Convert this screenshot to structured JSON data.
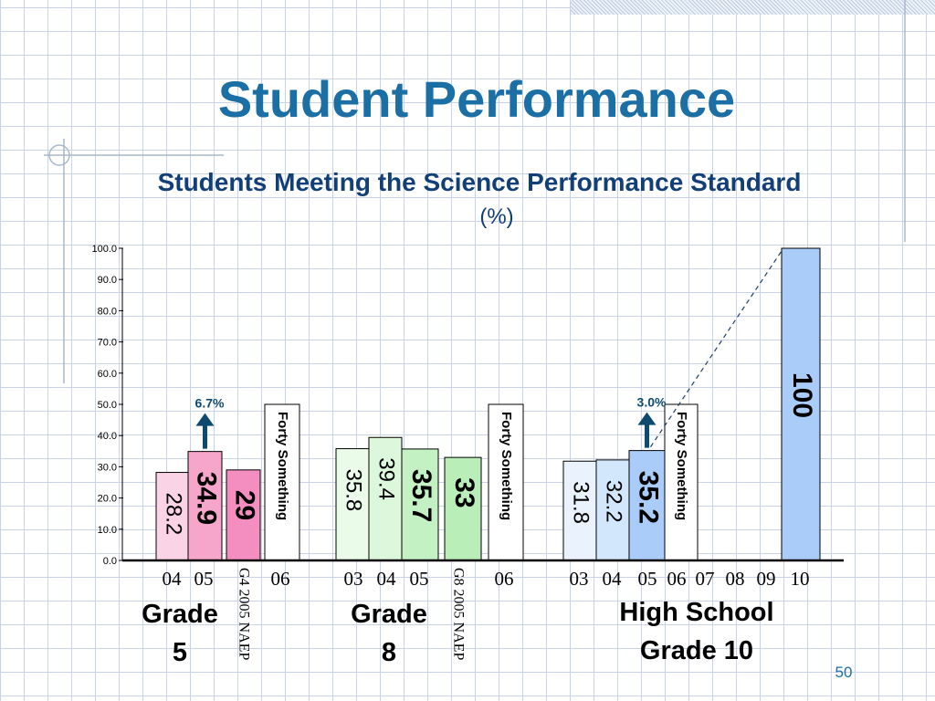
{
  "title": "Student Performance",
  "slide_number": "50",
  "chart_data": {
    "type": "bar",
    "title": "Students Meeting the Science Performance Standard",
    "unit_label": "(%)",
    "ylim": [
      0,
      100
    ],
    "y_ticks": [
      "0.0",
      "10.0",
      "20.0",
      "30.0",
      "40.0",
      "50.0",
      "60.0",
      "70.0",
      "80.0",
      "90.0",
      "100.0"
    ],
    "groups": [
      {
        "name": "Grade 5",
        "label_lines": [
          "Grade",
          "5"
        ]
      },
      {
        "name": "Grade 8",
        "label_lines": [
          "Grade",
          "8"
        ]
      },
      {
        "name": "High School Grade 10",
        "label_lines": [
          "High School",
          "Grade 10"
        ]
      }
    ],
    "bars": [
      {
        "x_label": "04",
        "value": 28.2,
        "value_label": "28.2",
        "group": "Grade 5",
        "fill": "#fbd3e6"
      },
      {
        "x_label": "05",
        "value": 34.9,
        "value_label": "34.9",
        "group": "Grade 5",
        "fill": "#f7a6cb",
        "bold": true
      },
      {
        "x_label": "G4 2005 NAEP",
        "value": 29,
        "value_label": "29",
        "group": "Grade 5",
        "fill": "#f58ec0",
        "bold": true
      },
      {
        "x_label": "06",
        "value": 50,
        "value_label": "Forty Something",
        "group": "Grade 5",
        "fill": "#ffffff"
      },
      {
        "x_label": "03",
        "value": 35.8,
        "value_label": "35.8",
        "group": "Grade 8",
        "fill": "#eafbea"
      },
      {
        "x_label": "04",
        "value": 39.4,
        "value_label": "39.4",
        "group": "Grade 8",
        "fill": "#dcf7dc"
      },
      {
        "x_label": "05",
        "value": 35.7,
        "value_label": "35.7",
        "group": "Grade 8",
        "fill": "#c3f1c3",
        "bold": true
      },
      {
        "x_label": "G8 2005 NAEP",
        "value": 33,
        "value_label": "33",
        "group": "Grade 8",
        "fill": "#b9eeb9",
        "bold": true
      },
      {
        "x_label": "06",
        "value": 50,
        "value_label": "Forty Something",
        "group": "Grade 8",
        "fill": "#ffffff"
      },
      {
        "x_label": "03",
        "value": 31.8,
        "value_label": "31.8",
        "group": "High School Grade 10",
        "fill": "#eaf3fd"
      },
      {
        "x_label": "04",
        "value": 32.2,
        "value_label": "32.2",
        "group": "High School Grade 10",
        "fill": "#d2e6fc"
      },
      {
        "x_label": "05",
        "value": 35.2,
        "value_label": "35.2",
        "group": "High School Grade 10",
        "fill": "#a9cdf8",
        "bold": true
      },
      {
        "x_label": "06",
        "value": 50,
        "value_label": "Forty Something",
        "group": "High School Grade 10",
        "fill": "#ffffff"
      },
      {
        "x_label": "07",
        "value": null,
        "group": "High School Grade 10"
      },
      {
        "x_label": "08",
        "value": null,
        "group": "High School Grade 10"
      },
      {
        "x_label": "09",
        "value": null,
        "group": "High School Grade 10"
      },
      {
        "x_label": "10",
        "value": 100,
        "value_label": "100",
        "group": "High School Grade 10",
        "fill": "#a9cdf8",
        "bold": true
      }
    ],
    "annotations": [
      {
        "text": "6.7%",
        "type": "up-arrow",
        "group": "Grade 5",
        "bar_x_label": "05"
      },
      {
        "text": "3.0%",
        "type": "up-arrow",
        "group": "High School Grade 10",
        "bar_x_label": "05"
      },
      {
        "text": "",
        "type": "dashed-trend-line",
        "from": "HS 05",
        "to": "HS 10"
      }
    ],
    "colors": {
      "text": "#123f78",
      "accent": "#1b6fa5",
      "arrow": "#0e4a6e",
      "axis": "#000000"
    }
  }
}
